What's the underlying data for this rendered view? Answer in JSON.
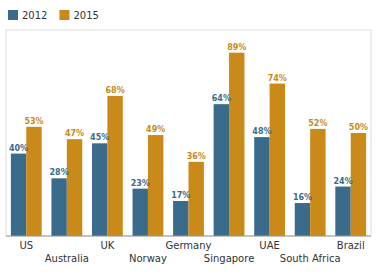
{
  "chart_data": {
    "type": "bar",
    "categories": [
      "US",
      "Australia",
      "UK",
      "Norway",
      "Germany",
      "Singapore",
      "UAE",
      "South Africa",
      "Brazil"
    ],
    "series": [
      {
        "name": "2012",
        "color": "#3a6b8a",
        "values": [
          40,
          28,
          45,
          23,
          17,
          64,
          48,
          16,
          24
        ],
        "value_labels": [
          "40%",
          "28%",
          "45%",
          "23%",
          "17%",
          "64%",
          "48%",
          "16%",
          "24%"
        ]
      },
      {
        "name": "2015",
        "color": "#c98a1a",
        "values": [
          53,
          47,
          68,
          49,
          36,
          89,
          74,
          52,
          50
        ],
        "value_labels": [
          "53%",
          "47%",
          "68%",
          "49%",
          "36%",
          "89%",
          "74%",
          "52%",
          "50%"
        ]
      }
    ],
    "ylim": [
      0,
      100
    ],
    "grid": false,
    "legend": "upper left",
    "data_labels": true,
    "tick_labels": "x"
  }
}
